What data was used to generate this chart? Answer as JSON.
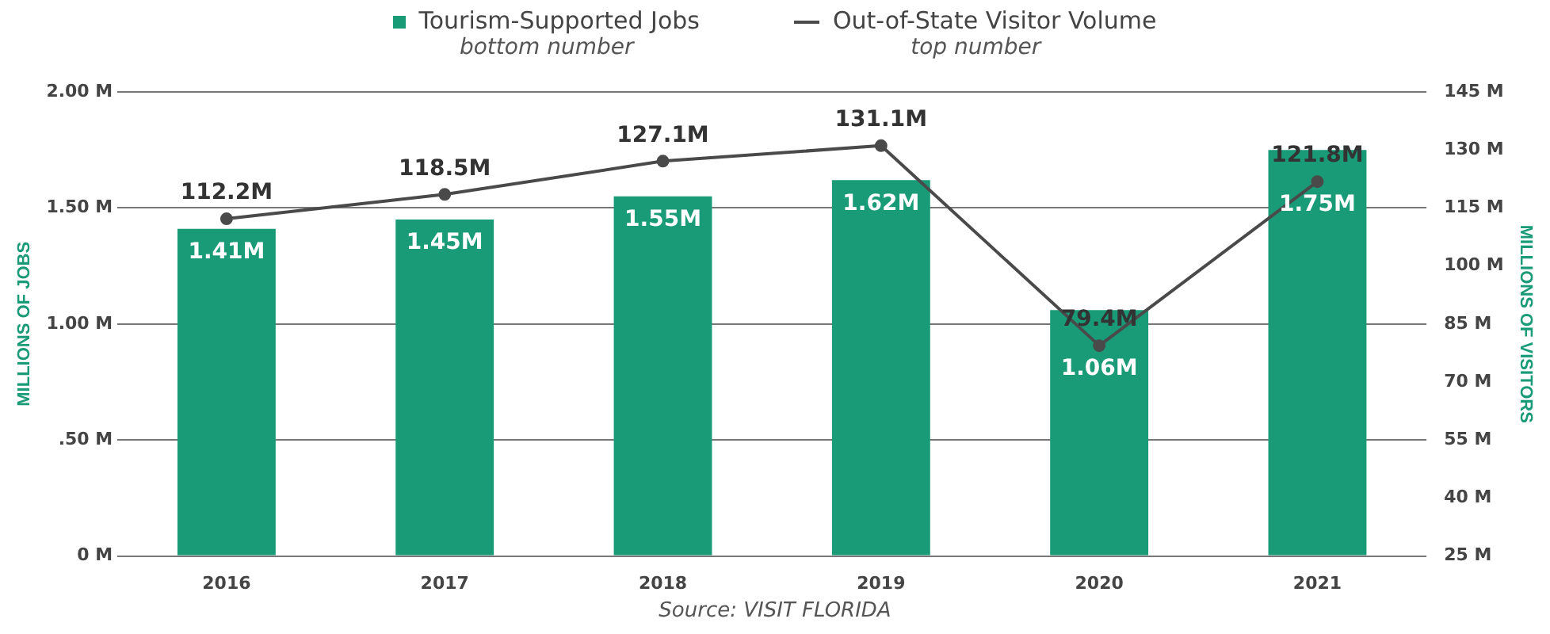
{
  "chart_data": {
    "type": "bar",
    "categories": [
      "2016",
      "2017",
      "2018",
      "2019",
      "2020",
      "2021"
    ],
    "series": [
      {
        "name": "Tourism-Supported Jobs",
        "color": "#1a9b78",
        "values": [
          1.41,
          1.45,
          1.55,
          1.62,
          1.06,
          1.75
        ],
        "value_labels": [
          "1.41M",
          "1.45M",
          "1.55M",
          "1.62M",
          "1.06M",
          "1.75M"
        ]
      },
      {
        "name": "Out-of-State Visitor Volume",
        "type": "line",
        "axis": "y2",
        "color": "#4a4a4a",
        "values": [
          112.2,
          118.5,
          127.1,
          131.1,
          79.4,
          121.8
        ],
        "value_labels": [
          "112.2M",
          "118.5M",
          "127.1M",
          "131.1M",
          "79.4M",
          "121.8M"
        ]
      }
    ],
    "ylabel": "MILLIONS OF JOBS",
    "y2label": "MILLIONS OF VISITORS",
    "ylim": [
      0,
      2
    ],
    "yticks": [
      {
        "value": 0,
        "label": "0 M"
      },
      {
        "value": 0.5,
        "label": ".50 M"
      },
      {
        "value": 1,
        "label": "1.00 M"
      },
      {
        "value": 1.5,
        "label": "1.50 M"
      },
      {
        "value": 2,
        "label": "2.00 M"
      }
    ],
    "y2lim": [
      25,
      145
    ],
    "y2ticks": [
      {
        "value": 25,
        "label": "25 M"
      },
      {
        "value": 40,
        "label": "40 M"
      },
      {
        "value": 55,
        "label": "55 M"
      },
      {
        "value": 70,
        "label": "70 M"
      },
      {
        "value": 85,
        "label": "85 M"
      },
      {
        "value": 100,
        "label": "100 M"
      },
      {
        "value": 115,
        "label": "115 M"
      },
      {
        "value": 130,
        "label": "130 M"
      },
      {
        "value": 145,
        "label": "145 M"
      }
    ],
    "grid": "y",
    "legend": "top",
    "marker": "circle",
    "annotations": [
      "bottom number",
      "top number",
      "Source: VISIT FLORIDA"
    ]
  }
}
